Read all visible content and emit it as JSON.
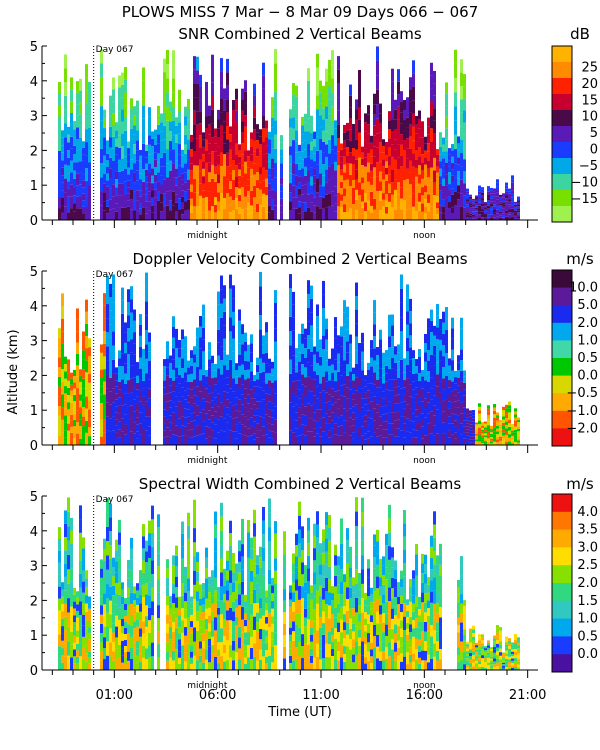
{
  "page_title": "PLOWS MISS   7 Mar −  8 Mar 09 Days 066 − 067",
  "xlabel": "Time (UT)",
  "ylabel": "Altitude (km)",
  "time_ticks": [
    "01:00",
    "06:00",
    "11:00",
    "16:00",
    "21:00"
  ],
  "day_marker_label": "Day 067",
  "midnight_label": "midnight",
  "noon_label": "noon",
  "chart_data": [
    {
      "type": "heatmap",
      "title": "SNR Combined 2 Vertical Beams",
      "unit": "dB",
      "x_range_hours": [
        -2.5,
        21.5
      ],
      "ylim": [
        0,
        5
      ],
      "yticks": [
        "0",
        "1",
        "2",
        "3",
        "4",
        "5"
      ],
      "colorbar_labels": [
        "25",
        "20",
        "15",
        "10",
        "5",
        "0",
        "−5",
        "−10",
        "−15"
      ],
      "colors": [
        "#ffb300",
        "#ff8c00",
        "#ff2200",
        "#c80030",
        "#4a0a4a",
        "#5a1ab8",
        "#1a3cff",
        "#00a8e8",
        "#3cd4a0",
        "#78e000",
        "#a0f050"
      ]
    },
    {
      "type": "heatmap",
      "title": "Doppler Velocity Combined 2 Vertical Beams",
      "unit": "m/s",
      "x_range_hours": [
        -2.5,
        21.5
      ],
      "ylim": [
        0,
        5
      ],
      "yticks": [
        "0",
        "1",
        "2",
        "3",
        "4",
        "5"
      ],
      "colorbar_labels": [
        "10.0",
        "5.0",
        "2.0",
        "1.0",
        "0.5",
        "0.0",
        "−0.5",
        "−1.0",
        "−2.0"
      ],
      "colors": [
        "#3a0a3a",
        "#5a1a9a",
        "#1a2aee",
        "#00a8ee",
        "#40d8a8",
        "#00c800",
        "#d8d800",
        "#ffaa00",
        "#ff5500",
        "#ee1111"
      ]
    },
    {
      "type": "heatmap",
      "title": "Spectral Width Combined 2 Vertical Beams",
      "unit": "m/s",
      "x_range_hours": [
        -2.5,
        21.5
      ],
      "ylim": [
        0,
        5
      ],
      "yticks": [
        "0",
        "1",
        "2",
        "3",
        "4",
        "5"
      ],
      "colorbar_labels": [
        "4.0",
        "3.5",
        "3.0",
        "2.5",
        "2.0",
        "1.5",
        "1.0",
        "0.5",
        "0.0"
      ],
      "colors": [
        "#ee1111",
        "#ff7700",
        "#ffaa00",
        "#ffdd00",
        "#88e000",
        "#30d880",
        "#30c8c0",
        "#00a8ee",
        "#1a3cff",
        "#4a10a0"
      ]
    }
  ]
}
